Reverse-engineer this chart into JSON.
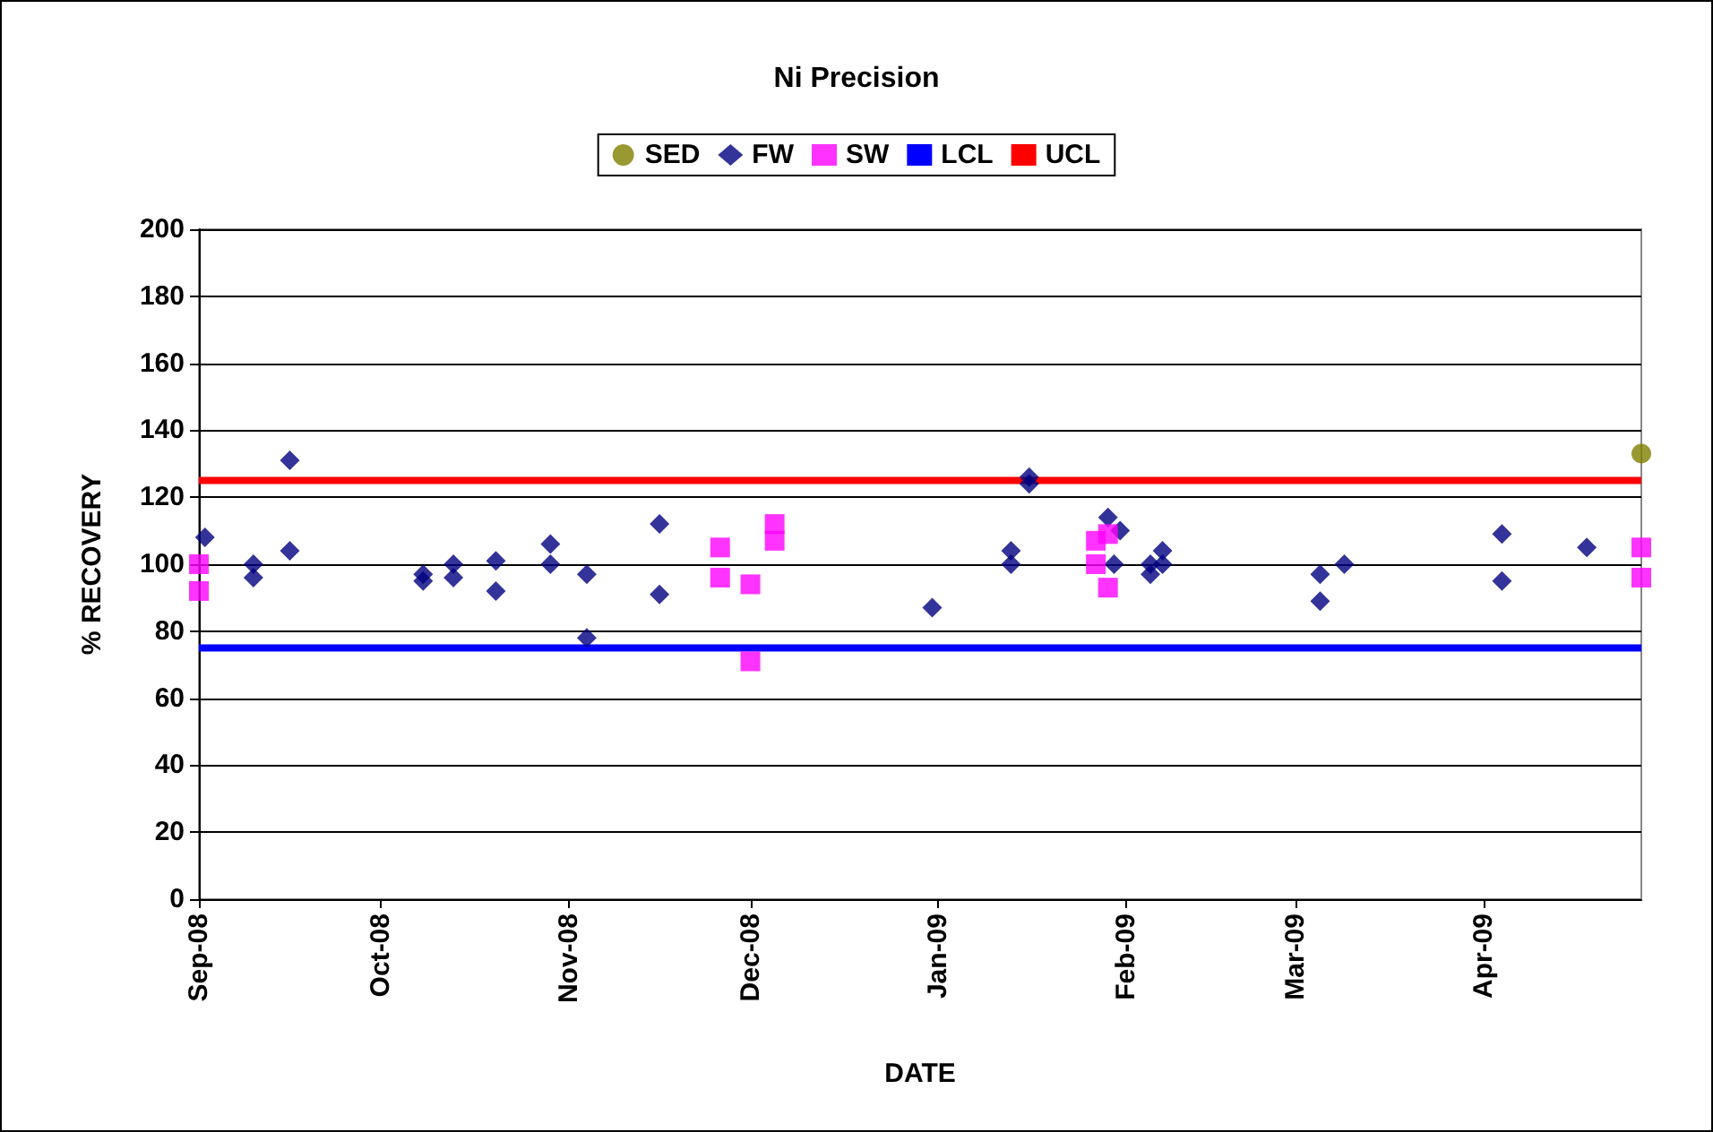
{
  "chart_data": {
    "type": "scatter",
    "title": "Ni Precision",
    "xlabel": "DATE",
    "ylabel": "% RECOVERY",
    "xlim": [
      "2008-09-01",
      "2009-04-27"
    ],
    "xticks": [
      {
        "value": "2008-09-01",
        "label": "Sep-08"
      },
      {
        "value": "2008-10-01",
        "label": "Oct-08"
      },
      {
        "value": "2008-11-01",
        "label": "Nov-08"
      },
      {
        "value": "2008-12-01",
        "label": "Dec-08"
      },
      {
        "value": "2009-01-01",
        "label": "Jan-09"
      },
      {
        "value": "2009-02-01",
        "label": "Feb-09"
      },
      {
        "value": "2009-03-01",
        "label": "Mar-09"
      },
      {
        "value": "2009-04-01",
        "label": "Apr-09"
      }
    ],
    "ylim": [
      0,
      200
    ],
    "yticks": [
      0,
      20,
      40,
      60,
      80,
      100,
      120,
      140,
      160,
      180,
      200
    ],
    "grid": "y",
    "legend": "top",
    "series": [
      {
        "name": "SED",
        "color": "#808000",
        "marker": "circle",
        "x": [
          "2009-04-27"
        ],
        "values": [
          133
        ]
      },
      {
        "name": "FW",
        "color": "#000080",
        "marker": "diamond",
        "x": [
          "2008-09-02",
          "2008-09-10",
          "2008-09-10",
          "2008-09-16",
          "2008-09-16",
          "2008-10-08",
          "2008-10-08",
          "2008-10-13",
          "2008-10-13",
          "2008-10-20",
          "2008-10-20",
          "2008-10-29",
          "2008-10-29",
          "2008-11-04",
          "2008-11-04",
          "2008-11-16",
          "2008-11-16",
          "2008-12-31",
          "2009-01-13",
          "2009-01-13",
          "2009-01-16",
          "2009-01-16",
          "2009-01-29",
          "2009-01-31",
          "2009-01-30",
          "2009-02-05",
          "2009-02-05",
          "2009-02-07",
          "2009-02-07",
          "2009-03-05",
          "2009-03-05",
          "2009-03-09",
          "2009-04-04",
          "2009-04-04",
          "2009-04-18"
        ],
        "values": [
          108,
          100,
          96,
          131,
          104,
          97,
          95,
          100,
          96,
          101,
          92,
          106,
          100,
          97,
          78,
          112,
          91,
          87,
          104,
          100,
          126,
          124,
          114,
          110,
          100,
          97,
          100,
          104,
          100,
          97,
          89,
          100,
          109,
          95,
          105
        ]
      },
      {
        "name": "SW",
        "color": "#ff00ff",
        "marker": "square",
        "x": [
          "2008-09-01",
          "2008-09-01",
          "2008-11-26",
          "2008-11-26",
          "2008-12-01",
          "2008-12-01",
          "2008-12-05",
          "2008-12-05",
          "2009-01-27",
          "2009-01-27",
          "2009-01-29",
          "2009-01-29",
          "2009-04-27",
          "2009-04-27"
        ],
        "values": [
          100,
          92,
          105,
          96,
          94,
          71,
          112,
          107,
          107,
          100,
          109,
          93,
          105,
          96
        ]
      },
      {
        "name": "LCL",
        "type": "line",
        "color": "#0000ff",
        "marker": "none",
        "x": [
          "2008-09-01",
          "2009-04-27"
        ],
        "values": [
          75,
          75
        ]
      },
      {
        "name": "UCL",
        "type": "line",
        "color": "#ff0000",
        "marker": "none",
        "x": [
          "2008-09-01",
          "2009-04-27"
        ],
        "values": [
          125,
          125
        ]
      }
    ]
  }
}
